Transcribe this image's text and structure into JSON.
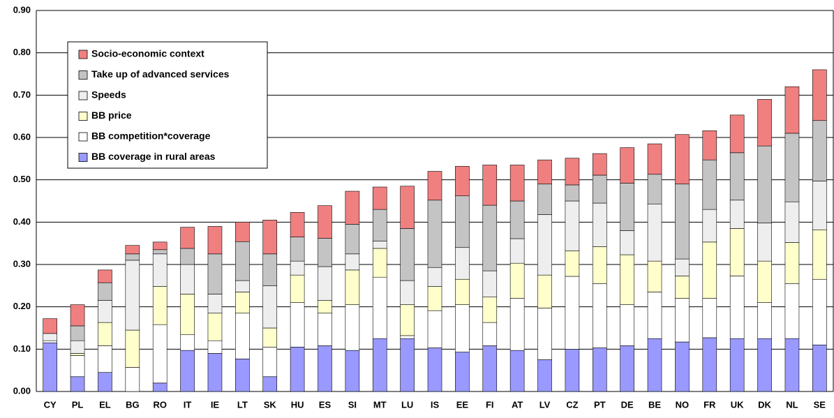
{
  "chart_data": {
    "type": "stacked_bar",
    "categories": [
      "CY",
      "PL",
      "EL",
      "BG",
      "RO",
      "IT",
      "IE",
      "LT",
      "SK",
      "HU",
      "ES",
      "SI",
      "MT",
      "LU",
      "IS",
      "EE",
      "FI",
      "AT",
      "LV",
      "CZ",
      "PT",
      "DE",
      "BE",
      "NO",
      "FR",
      "UK",
      "DK",
      "NL",
      "SE"
    ],
    "series": [
      {
        "name": "BB coverage in rural areas",
        "color": "#9999ff",
        "values": [
          0.115,
          0.035,
          0.045,
          0,
          0.02,
          0.097,
          0.09,
          0.077,
          0.035,
          0.105,
          0.108,
          0.097,
          0.125,
          0.125,
          0.103,
          0.093,
          0.108,
          0.097,
          0.075,
          0.1,
          0.103,
          0.108,
          0.125,
          0.117,
          0.127,
          0.125,
          0.125,
          0.125,
          0.11
        ]
      },
      {
        "name": "BB competition*coverage",
        "color": "#ffffff",
        "values": [
          0.005,
          0.05,
          0.063,
          0.057,
          0.138,
          0.037,
          0.03,
          0.108,
          0.07,
          0.105,
          0.077,
          0.108,
          0.145,
          0.007,
          0.088,
          0.112,
          0.055,
          0.123,
          0.122,
          0.172,
          0.152,
          0.097,
          0.11,
          0.103,
          0.093,
          0.148,
          0.085,
          0.13,
          0.155
        ]
      },
      {
        "name": "BB price",
        "color": "#ffffcc",
        "values": [
          0,
          0.005,
          0.055,
          0.088,
          0.09,
          0.096,
          0.065,
          0.05,
          0.045,
          0.065,
          0.03,
          0.082,
          0.068,
          0.073,
          0.057,
          0.06,
          0.06,
          0.083,
          0.078,
          0.06,
          0.087,
          0.118,
          0.073,
          0.053,
          0.133,
          0.112,
          0.098,
          0.097,
          0.117
        ]
      },
      {
        "name": "Speeds",
        "color": "#eeeeee",
        "values": [
          0.017,
          0.03,
          0.052,
          0.165,
          0.077,
          0.07,
          0.045,
          0.027,
          0.1,
          0.033,
          0.08,
          0.038,
          0.017,
          0.057,
          0.045,
          0.075,
          0.062,
          0.058,
          0.143,
          0.118,
          0.103,
          0.057,
          0.135,
          0.04,
          0.077,
          0.067,
          0.09,
          0.096,
          0.115
        ]
      },
      {
        "name": "Take up of advanced services",
        "color": "#c4c4c4",
        "values": [
          0,
          0.035,
          0.042,
          0.015,
          0.01,
          0.038,
          0.095,
          0.092,
          0.075,
          0.057,
          0.067,
          0.07,
          0.075,
          0.123,
          0.159,
          0.122,
          0.155,
          0.089,
          0.072,
          0.038,
          0.066,
          0.112,
          0.07,
          0.177,
          0.117,
          0.112,
          0.182,
          0.162,
          0.143
        ]
      },
      {
        "name": "Socio-economic context",
        "color": "#f08080",
        "values": [
          0.035,
          0.05,
          0.03,
          0.02,
          0.018,
          0.05,
          0.065,
          0.046,
          0.08,
          0.058,
          0.077,
          0.078,
          0.053,
          0.1,
          0.068,
          0.07,
          0.095,
          0.085,
          0.057,
          0.063,
          0.051,
          0.084,
          0.072,
          0.117,
          0.069,
          0.089,
          0.11,
          0.11,
          0.12
        ]
      }
    ],
    "ylim": [
      0,
      0.9
    ],
    "yticks": [
      {
        "value": 0,
        "label": "0.00"
      },
      {
        "value": 0.1,
        "label": "0.10"
      },
      {
        "value": 0.2,
        "label": "0.20"
      },
      {
        "value": 0.3,
        "label": "0.30"
      },
      {
        "value": 0.4,
        "label": "0.40"
      },
      {
        "value": 0.5,
        "label": "0.50"
      },
      {
        "value": 0.6,
        "label": "0.60"
      },
      {
        "value": 0.7,
        "label": "0.70"
      },
      {
        "value": 0.8,
        "label": "0.80"
      },
      {
        "value": 0.9,
        "label": "0.90"
      }
    ],
    "grid": true,
    "legend": "upper left"
  }
}
